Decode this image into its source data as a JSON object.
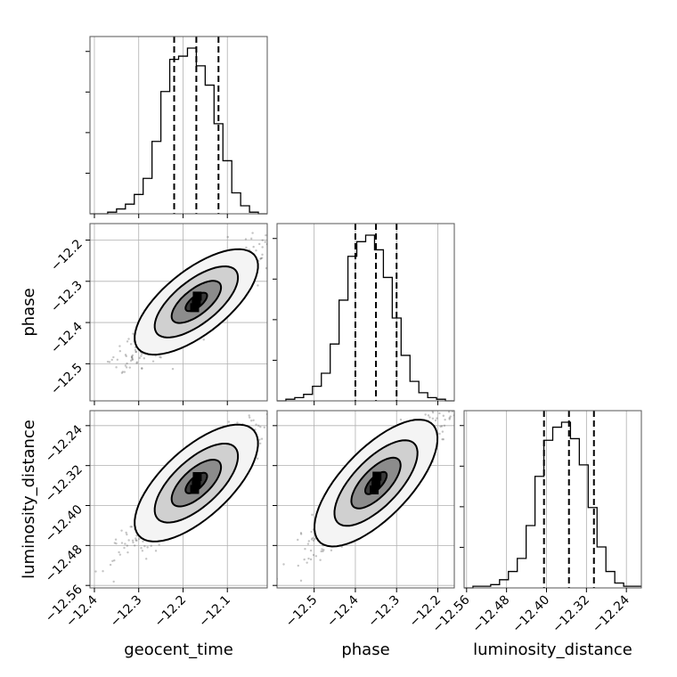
{
  "chart_data": {
    "type": "corner",
    "parameters": [
      "geocent_time",
      "phase",
      "luminosity_distance"
    ],
    "ranges": {
      "geocent_time": [
        -12.41,
        -12.01
      ],
      "phase": [
        -12.59,
        -12.16
      ],
      "luminosity_distance": [
        -12.565,
        -12.21
      ]
    },
    "ticks": {
      "geocent_time": [
        -12.4,
        -12.3,
        -12.2,
        -12.1
      ],
      "phase": [
        -12.5,
        -12.4,
        -12.3,
        -12.2
      ],
      "luminosity_distance": [
        -12.56,
        -12.48,
        -12.4,
        -12.32,
        -12.24
      ]
    },
    "tick_labels": {
      "geocent_time": [
        "−12.4",
        "−12.3",
        "−12.2",
        "−12.1"
      ],
      "phase": [
        "−12.5",
        "−12.4",
        "−12.3",
        "−12.2"
      ],
      "luminosity_distance": [
        "−12.56",
        "−12.48",
        "−12.40",
        "−12.32",
        "−12.24"
      ]
    },
    "histograms": {
      "geocent_time": {
        "edges": [
          -12.41,
          -12.39,
          -12.37,
          -12.35,
          -12.33,
          -12.31,
          -12.29,
          -12.27,
          -12.25,
          -12.23,
          -12.21,
          -12.19,
          -12.17,
          -12.15,
          -12.13,
          -12.11,
          -12.09,
          -12.07,
          -12.05,
          -12.03,
          -12.01
        ],
        "counts": [
          0,
          0,
          1,
          3,
          6,
          12,
          22,
          45,
          76,
          96,
          98,
          103,
          92,
          80,
          56,
          33,
          13,
          5,
          1,
          0
        ]
      },
      "phase": {
        "edges": [
          -12.59,
          -12.5685,
          -12.547,
          -12.5255,
          -12.504,
          -12.4825,
          -12.461,
          -12.4395,
          -12.418,
          -12.3965,
          -12.375,
          -12.3535,
          -12.332,
          -12.3105,
          -12.289,
          -12.2675,
          -12.246,
          -12.2245,
          -12.203,
          -12.1815,
          -12.16
        ],
        "counts": [
          0,
          1,
          2,
          4,
          9,
          17,
          35,
          62,
          89,
          98,
          102,
          93,
          76,
          51,
          28,
          12,
          5,
          2,
          1,
          0
        ]
      },
      "luminosity_distance": {
        "edges": [
          -12.565,
          -12.54725,
          -12.5295,
          -12.51175,
          -12.494,
          -12.47625,
          -12.4585,
          -12.44075,
          -12.423,
          -12.40525,
          -12.3875,
          -12.36975,
          -12.352,
          -12.33425,
          -12.3165,
          -12.29875,
          -12.281,
          -12.26325,
          -12.2455,
          -12.22775,
          -12.21
        ],
        "counts": [
          0,
          1,
          1,
          2,
          5,
          10,
          18,
          38,
          68,
          90,
          98,
          101,
          91,
          75,
          49,
          25,
          10,
          3,
          1,
          1
        ]
      }
    },
    "quantiles": {
      "geocent_time": [
        -12.22,
        -12.17,
        -12.12
      ],
      "phase": [
        -12.4,
        -12.35,
        -12.3
      ],
      "luminosity_distance": [
        -12.405,
        -12.355,
        -12.305
      ]
    },
    "joint": [
      {
        "x": "geocent_time",
        "y": "phase",
        "center": [
          -12.17,
          -12.35
        ],
        "axis_major": [
          0.13,
          0.115
        ],
        "axis_minor": [
          -0.025,
          0.028
        ]
      },
      {
        "x": "geocent_time",
        "y": "luminosity_distance",
        "center": [
          -12.17,
          -12.355
        ],
        "axis_major": [
          0.13,
          0.105
        ],
        "axis_minor": [
          -0.025,
          0.026
        ]
      },
      {
        "x": "phase",
        "y": "luminosity_distance",
        "center": [
          -12.35,
          -12.355
        ],
        "axis_major": [
          0.14,
          0.115
        ],
        "axis_minor": [
          -0.026,
          0.027
        ]
      }
    ],
    "contour_levels": [
      {
        "scale": 2.0,
        "fill": "#f4f4f4"
      },
      {
        "scale": 1.35,
        "fill": "#d0d0d0"
      },
      {
        "scale": 0.8,
        "fill": "#8c8c8c"
      },
      {
        "scale": 0.35,
        "fill": "#3a3a3a"
      }
    ],
    "grid": true,
    "colors": {
      "hist": "#000000",
      "samples": "#555555",
      "frame": "#555555"
    }
  }
}
